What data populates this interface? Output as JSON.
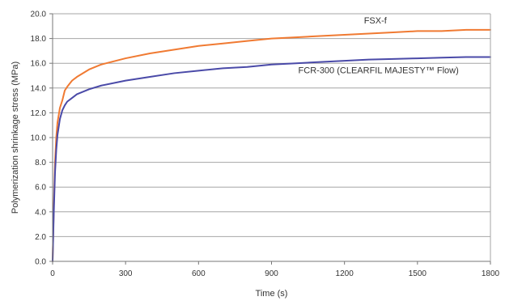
{
  "chart_data": {
    "type": "line",
    "title": "",
    "xlabel": "Time (s)",
    "ylabel": "Polymerization shrinkage stress (MPa)",
    "xlim": [
      0,
      1800
    ],
    "ylim": [
      0,
      20
    ],
    "xticks": [
      0,
      300,
      600,
      900,
      1200,
      1500,
      1800
    ],
    "xtick_labels": [
      "0",
      "300",
      "600",
      "900",
      "1200",
      "1500",
      "1800"
    ],
    "yticks": [
      0,
      2,
      4,
      6,
      8,
      10,
      12,
      14,
      16,
      18,
      20
    ],
    "ytick_labels": [
      "0.0",
      "2.0",
      "4.0",
      "6.0",
      "8.0",
      "10.0",
      "12.0",
      "14.0",
      "16.0",
      "18.0",
      "20.0"
    ],
    "grid": "horizontal",
    "series": [
      {
        "name": "FSX-f",
        "color": "#f07a32",
        "points": [
          [
            0,
            0
          ],
          [
            5,
            4.5
          ],
          [
            10,
            8.0
          ],
          [
            15,
            10.0
          ],
          [
            20,
            11.2
          ],
          [
            30,
            12.4
          ],
          [
            40,
            13.0
          ],
          [
            50,
            13.8
          ],
          [
            60,
            14.1
          ],
          [
            80,
            14.6
          ],
          [
            100,
            14.9
          ],
          [
            150,
            15.5
          ],
          [
            200,
            15.9
          ],
          [
            300,
            16.4
          ],
          [
            400,
            16.8
          ],
          [
            500,
            17.1
          ],
          [
            600,
            17.4
          ],
          [
            700,
            17.6
          ],
          [
            800,
            17.8
          ],
          [
            900,
            18.0
          ],
          [
            1000,
            18.1
          ],
          [
            1100,
            18.2
          ],
          [
            1200,
            18.3
          ],
          [
            1300,
            18.4
          ],
          [
            1400,
            18.5
          ],
          [
            1500,
            18.6
          ],
          [
            1600,
            18.6
          ],
          [
            1700,
            18.7
          ],
          [
            1800,
            18.7
          ]
        ]
      },
      {
        "name": "FCR-300 (CLEARFIL MAJESTY™ Flow)",
        "color": "#4a4aa8",
        "points": [
          [
            0,
            0
          ],
          [
            5,
            4.0
          ],
          [
            10,
            7.2
          ],
          [
            15,
            9.0
          ],
          [
            20,
            10.2
          ],
          [
            30,
            11.5
          ],
          [
            40,
            12.2
          ],
          [
            50,
            12.6
          ],
          [
            60,
            12.9
          ],
          [
            80,
            13.2
          ],
          [
            100,
            13.5
          ],
          [
            150,
            13.9
          ],
          [
            200,
            14.2
          ],
          [
            300,
            14.6
          ],
          [
            400,
            14.9
          ],
          [
            500,
            15.2
          ],
          [
            600,
            15.4
          ],
          [
            700,
            15.6
          ],
          [
            800,
            15.7
          ],
          [
            900,
            15.9
          ],
          [
            1000,
            16.0
          ],
          [
            1100,
            16.1
          ],
          [
            1200,
            16.2
          ],
          [
            1300,
            16.3
          ],
          [
            1400,
            16.35
          ],
          [
            1500,
            16.4
          ],
          [
            1600,
            16.45
          ],
          [
            1700,
            16.5
          ],
          [
            1800,
            16.5
          ]
        ]
      }
    ],
    "annotations": [
      {
        "text": "FSX-f",
        "x": 1280,
        "y": 19.2,
        "anchor": "start"
      },
      {
        "text": "FCR-300 (CLEARFIL MAJESTY™ Flow)",
        "x": 1010,
        "y": 15.2,
        "anchor": "start"
      }
    ]
  },
  "colors": {
    "grid": "#a6a6a6",
    "axis": "#777777",
    "fsx": "#f07a32",
    "fcr": "#4a4aa8"
  }
}
